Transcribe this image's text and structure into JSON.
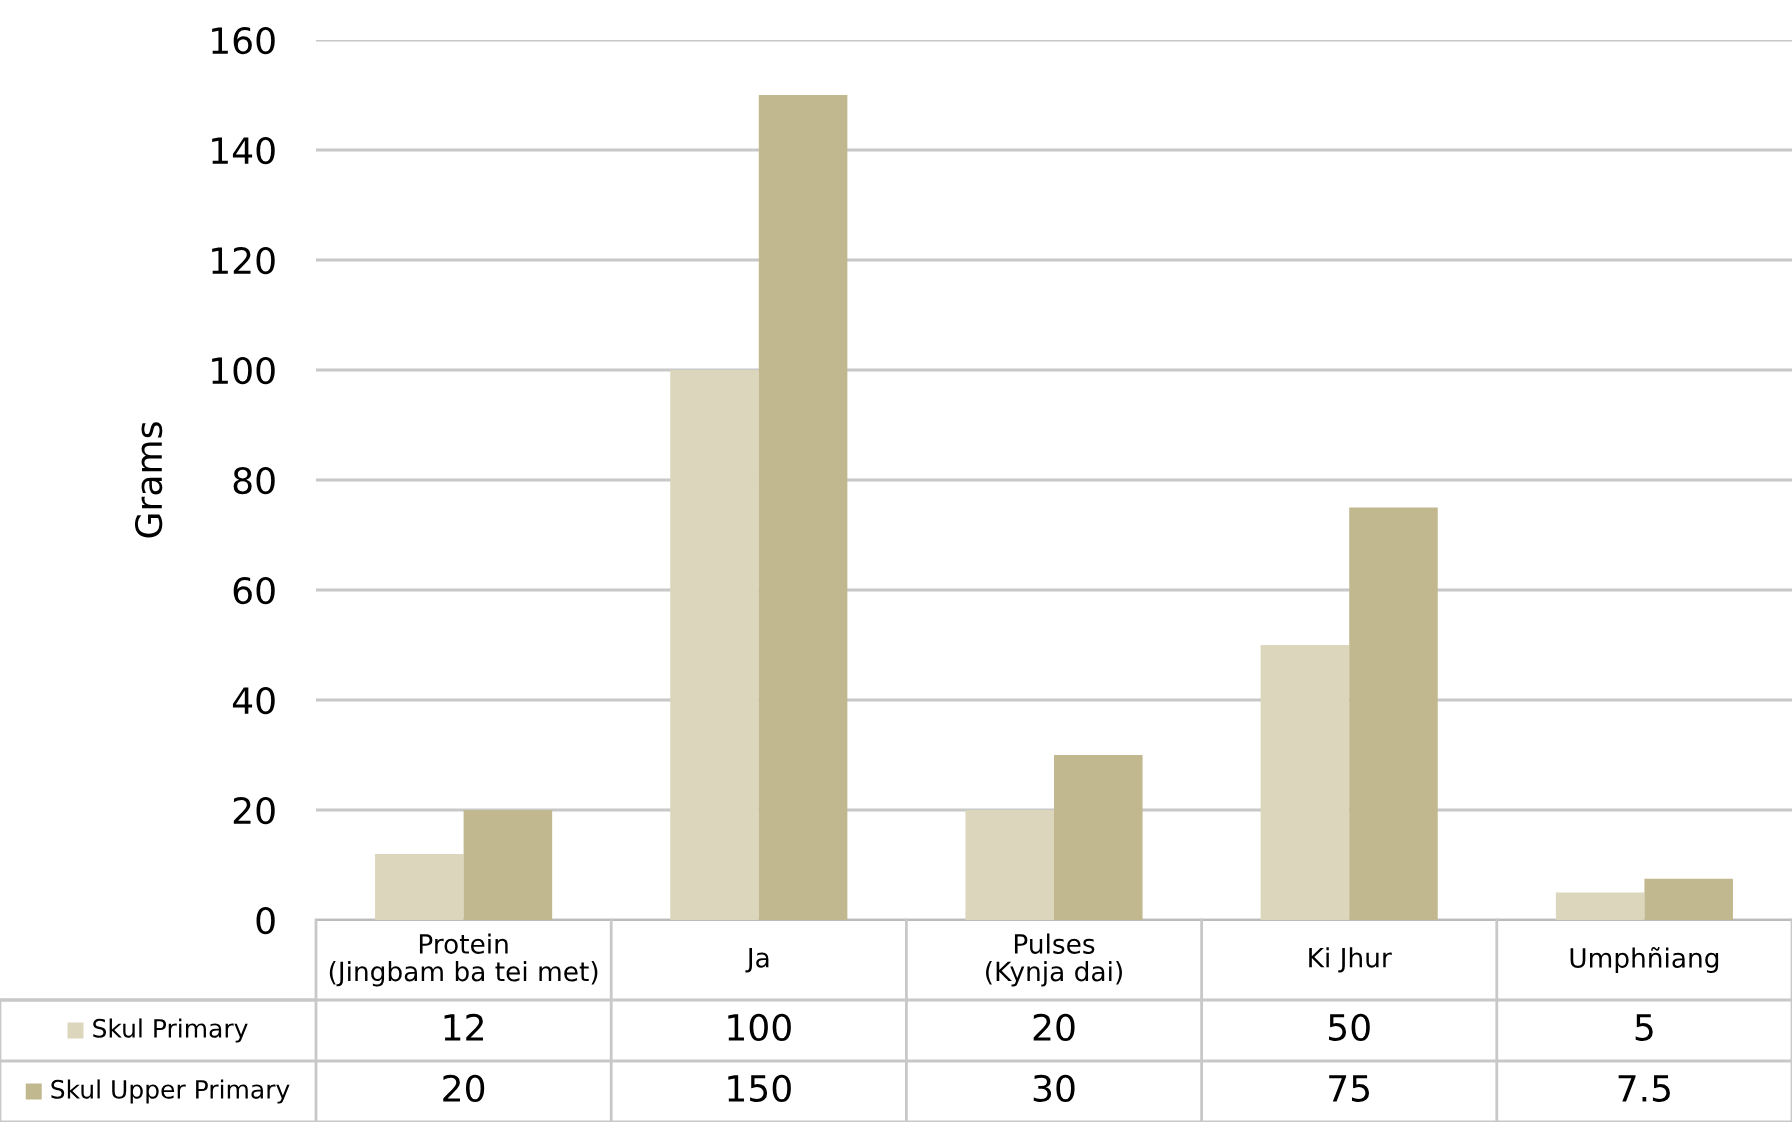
{
  "chart_data": {
    "type": "bar",
    "ylabel": "Grams",
    "categories": [
      "Protein\n(Jingbam ba tei met)",
      "Ja",
      "Pulses\n(Kynja dai)",
      "Ki Jhur",
      "Umphñiang"
    ],
    "series": [
      {
        "name": "Skul Primary",
        "color": "#dcd6bd",
        "values": [
          12,
          100,
          20,
          50,
          5
        ]
      },
      {
        "name": "Skul Upper Primary",
        "color": "#c2b88f",
        "values": [
          20,
          150,
          30,
          75,
          7.5
        ]
      }
    ],
    "ylim": [
      0,
      160
    ],
    "yticks": [
      0,
      20,
      40,
      60,
      80,
      100,
      120,
      140,
      160
    ],
    "grid": "y",
    "data_labels": true,
    "legend": "bottom left"
  }
}
